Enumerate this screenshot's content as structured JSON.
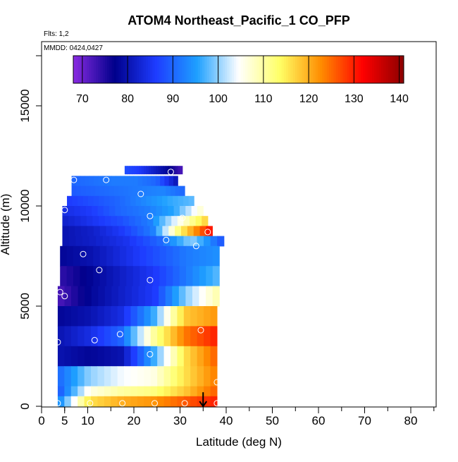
{
  "chart_data": {
    "type": "heatmap",
    "title": "ATOM4 Northeast_Pacific_1 CO_PFP",
    "annotations": {
      "flights": "Flts: 1,2",
      "dates": "MMDD: 0424,0427"
    },
    "xlabel": "Latitude (deg N)",
    "ylabel": "Altitude (m)",
    "xlim": [
      0,
      85
    ],
    "ylim": [
      0,
      18000
    ],
    "x_ticks": [
      0,
      5,
      10,
      20,
      30,
      40,
      50,
      60,
      70,
      80
    ],
    "x_tick_labels": [
      "0",
      "5",
      "10",
      "20",
      "30",
      "40",
      "50",
      "60",
      "70",
      "80"
    ],
    "y_ticks": [
      0,
      5000,
      10000,
      15000
    ],
    "y_tick_labels": [
      "0",
      "5000",
      "10000",
      "15000"
    ],
    "colorbar": {
      "min": 68,
      "max": 141,
      "ticks": [
        70,
        80,
        90,
        100,
        110,
        120,
        130,
        140
      ],
      "tick_labels": [
        "70",
        "80",
        "90",
        "100",
        "110",
        "120",
        "130",
        "140"
      ],
      "colors": [
        "#8a2be2",
        "#00008b",
        "#1e3cff",
        "#1ea0ff",
        "#ffffff",
        "#ffff66",
        "#ff8c00",
        "#ff0000",
        "#8b0000"
      ]
    },
    "field": {
      "rows": [
        {
          "alt": [
            11600,
            12000
          ],
          "lats": [
            18,
            30.5
          ],
          "values": [
            88,
            86,
            82,
            78,
            72
          ]
        },
        {
          "alt": [
            11000,
            11500
          ],
          "lats": [
            6.5,
            29.5
          ],
          "values": [
            90,
            91,
            92,
            92,
            90,
            80
          ]
        },
        {
          "alt": [
            10500,
            11000
          ],
          "lats": [
            6.5,
            31
          ],
          "values": [
            89,
            90,
            91,
            92,
            93,
            90
          ]
        },
        {
          "alt": [
            10000,
            10500
          ],
          "lats": [
            5.5,
            33
          ],
          "values": [
            86,
            88,
            90,
            93,
            96,
            98
          ]
        },
        {
          "alt": [
            9500,
            10000
          ],
          "lats": [
            4.5,
            35
          ],
          "values": [
            84,
            86,
            90,
            92,
            96,
            108
          ]
        },
        {
          "alt": [
            9000,
            9500
          ],
          "lats": [
            4.5,
            36
          ],
          "values": [
            82,
            85,
            88,
            92,
            105,
            118
          ]
        },
        {
          "alt": [
            8500,
            9000
          ],
          "lats": [
            4.5,
            37
          ],
          "values": [
            80,
            82,
            86,
            92,
            115,
            132
          ]
        },
        {
          "alt": [
            8000,
            8500
          ],
          "lats": [
            4.5,
            39.5
          ],
          "values": [
            80,
            82,
            85,
            90,
            100,
            88
          ]
        },
        {
          "alt": [
            7000,
            8000
          ],
          "lats": [
            4,
            38.5
          ],
          "values": [
            78,
            80,
            84,
            88,
            92,
            94
          ]
        },
        {
          "alt": [
            6000,
            7000
          ],
          "lats": [
            4,
            38.5
          ],
          "values": [
            74,
            78,
            82,
            86,
            92,
            98
          ]
        },
        {
          "alt": [
            5000,
            6000
          ],
          "lats": [
            3.5,
            38.5
          ],
          "values": [
            72,
            78,
            82,
            86,
            100,
            110
          ]
        },
        {
          "alt": [
            4000,
            5000
          ],
          "lats": [
            3.5,
            38
          ],
          "values": [
            78,
            80,
            84,
            96,
            118,
            122
          ]
        },
        {
          "alt": [
            3000,
            4000
          ],
          "lats": [
            3.5,
            38
          ],
          "values": [
            80,
            84,
            90,
            110,
            124,
            130
          ]
        },
        {
          "alt": [
            2000,
            3000
          ],
          "lats": [
            3.5,
            38
          ],
          "values": [
            80,
            78,
            80,
            96,
            116,
            126
          ]
        },
        {
          "alt": [
            1000,
            2000
          ],
          "lats": [
            3.5,
            38
          ],
          "values": [
            90,
            100,
            104,
            106,
            116,
            124
          ]
        },
        {
          "alt": [
            500,
            1000
          ],
          "lats": [
            3.5,
            38
          ],
          "values": [
            88,
            106,
            110,
            112,
            118,
            126
          ]
        },
        {
          "alt": [
            0,
            500
          ],
          "lats": [
            3.5,
            38
          ],
          "values": [
            92,
            116,
            120,
            122,
            126,
            130
          ]
        }
      ]
    },
    "samples": [
      [
        7,
        11300
      ],
      [
        14,
        11300
      ],
      [
        28,
        11700
      ],
      [
        21.5,
        10600
      ],
      [
        5,
        9800
      ],
      [
        23.5,
        9500
      ],
      [
        30.5,
        9400
      ],
      [
        36,
        8700
      ],
      [
        27,
        8300
      ],
      [
        33.5,
        8000
      ],
      [
        9,
        7600
      ],
      [
        12.5,
        6800
      ],
      [
        23.5,
        6300
      ],
      [
        4,
        5700
      ],
      [
        5,
        5500
      ],
      [
        17,
        3600
      ],
      [
        34.5,
        3800
      ],
      [
        11.5,
        3300
      ],
      [
        3.5,
        3200
      ],
      [
        23.5,
        2600
      ],
      [
        38,
        1200
      ],
      [
        3.5,
        150
      ],
      [
        10.5,
        150
      ],
      [
        17.5,
        150
      ],
      [
        24.5,
        150
      ],
      [
        31,
        150
      ],
      [
        38,
        150
      ]
    ],
    "arrow": {
      "lat": 35,
      "alt_from": 700,
      "alt_to": 0
    },
    "marker_colors": {
      "sample": "#ffffff",
      "arrow": "#000000",
      "frame": "#000000"
    }
  }
}
